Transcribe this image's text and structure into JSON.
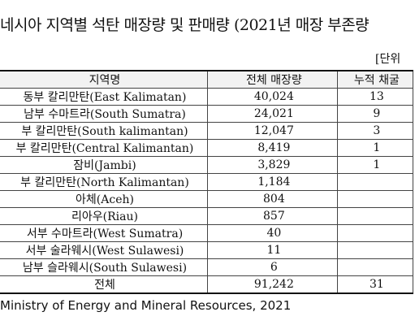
{
  "header": {
    "title": "네시아 지역별 석탄 매장량 및 판매량 (2021년 매장 부존량",
    "unit": "[단위"
  },
  "table": {
    "columns": [
      "지역명",
      "전체 매장량",
      "누적 채굴"
    ],
    "rows": [
      [
        "동부 칼리만탄(East Kalimatan)",
        "40,024",
        "13"
      ],
      [
        "남부 수마트라(South Sumatra)",
        "24,021",
        "9"
      ],
      [
        "부 칼리만탄(South kalimantan)",
        "12,047",
        "3"
      ],
      [
        "부 칼리만탄(Central Kalimantan)",
        "8,419",
        "1"
      ],
      [
        "잠비(Jambi)",
        "3,829",
        "1"
      ],
      [
        "부 칼리만탄(North Kalimantan)",
        "1,184"
      ],
      [
        "아체(Aceh)",
        "804"
      ],
      [
        "리아우(Riau)",
        "857"
      ],
      [
        "서부 수마트라(West Sumatra)",
        "40"
      ],
      [
        "서부 술라웨시(West Sulawesi)",
        "11"
      ],
      [
        "남부 슬라웨시(South Sulawesi)",
        "6"
      ],
      [
        "전체",
        "91,242",
        "31"
      ]
    ]
  },
  "footer": {
    "source": "Ministry of Energy and Mineral Resources, 2021"
  }
}
